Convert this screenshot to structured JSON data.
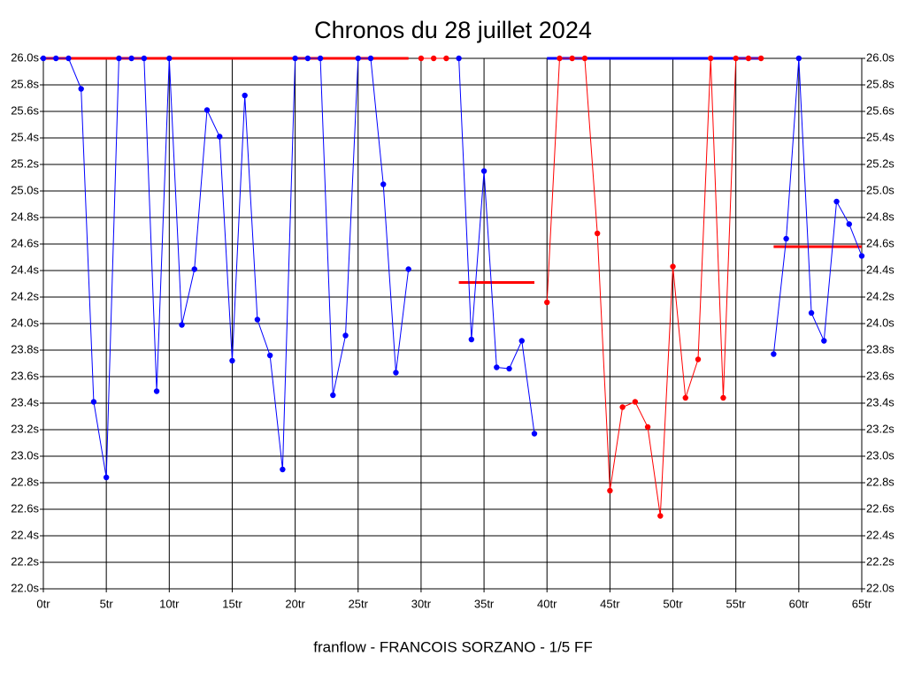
{
  "chart_data": {
    "type": "line",
    "title": "Chronos du 28 juillet 2024",
    "subtitle": "franflow - FRANCOIS SORZANO - 1/5 FF",
    "x": [
      0,
      1,
      2,
      3,
      4,
      5,
      6,
      7,
      8,
      9,
      10,
      11,
      12,
      13,
      14,
      15,
      16,
      17,
      18,
      19,
      20,
      21,
      22,
      23,
      24,
      25,
      26,
      27,
      28,
      29,
      30,
      31,
      32,
      33,
      34,
      35,
      36,
      37,
      38,
      39,
      40,
      41,
      42,
      43,
      44,
      45,
      46,
      47,
      48,
      49,
      50,
      51,
      52,
      53,
      54,
      55,
      56,
      57,
      58,
      59,
      60,
      61,
      62,
      63,
      64,
      65
    ],
    "series": [
      {
        "color": "#0000ff",
        "values": [
          26,
          26,
          26,
          25.77,
          23.41,
          22.84,
          26,
          26,
          26,
          23.49,
          26,
          23.99,
          24.41,
          25.61,
          25.41,
          23.72,
          25.72,
          24.03,
          23.76,
          22.9,
          26,
          26,
          26,
          23.46,
          23.91,
          26,
          26,
          25.05,
          23.63,
          24.41,
          null,
          null,
          null,
          26,
          23.88,
          25.15,
          23.67,
          23.66,
          23.87,
          23.17,
          null,
          null,
          null,
          null,
          null,
          null,
          null,
          null,
          null,
          null,
          null,
          null,
          null,
          null,
          null,
          null,
          null,
          null,
          23.77,
          24.64,
          26,
          24.08,
          23.87,
          24.92,
          24.75,
          24.51
        ]
      },
      {
        "color": "#ff0000",
        "values": [
          null,
          null,
          null,
          null,
          null,
          null,
          null,
          null,
          null,
          null,
          null,
          null,
          null,
          null,
          null,
          null,
          null,
          null,
          null,
          null,
          null,
          null,
          null,
          null,
          null,
          null,
          null,
          null,
          null,
          null,
          26,
          26,
          26,
          null,
          null,
          null,
          null,
          null,
          null,
          null,
          24.16,
          26,
          26,
          26,
          24.68,
          22.74,
          23.37,
          23.41,
          23.22,
          22.55,
          24.43,
          23.44,
          23.73,
          26,
          23.44,
          26,
          26,
          26,
          null,
          null,
          null,
          null,
          null,
          null,
          null,
          null
        ]
      }
    ],
    "ref_lines": [
      {
        "x": [
          0,
          29
        ],
        "value": 26,
        "color": "#ff0000"
      },
      {
        "x": [
          33,
          39
        ],
        "value": 24.31,
        "color": "#ff0000"
      },
      {
        "x": [
          40,
          57
        ],
        "value": 26,
        "color": "#0000ff"
      },
      {
        "x": [
          58,
          65
        ],
        "value": 24.58,
        "color": "#ff0000"
      }
    ],
    "xlim": [
      0,
      65
    ],
    "ylim": [
      22,
      26
    ],
    "xticks": [
      {
        "value": 0,
        "label": "0tr"
      },
      {
        "value": 5,
        "label": "5tr"
      },
      {
        "value": 10,
        "label": "10tr"
      },
      {
        "value": 15,
        "label": "15tr"
      },
      {
        "value": 20,
        "label": "20tr"
      },
      {
        "value": 25,
        "label": "25tr"
      },
      {
        "value": 30,
        "label": "30tr"
      },
      {
        "value": 35,
        "label": "35tr"
      },
      {
        "value": 40,
        "label": "40tr"
      },
      {
        "value": 45,
        "label": "45tr"
      },
      {
        "value": 50,
        "label": "50tr"
      },
      {
        "value": 55,
        "label": "55tr"
      },
      {
        "value": 60,
        "label": "60tr"
      },
      {
        "value": 65,
        "label": "65tr"
      }
    ],
    "yticks": [
      {
        "value": 22,
        "label": "22.0s"
      },
      {
        "value": 22.2,
        "label": "22.2s"
      },
      {
        "value": 22.4,
        "label": "22.4s"
      },
      {
        "value": 22.6,
        "label": "22.6s"
      },
      {
        "value": 22.8,
        "label": "22.8s"
      },
      {
        "value": 23,
        "label": "23.0s"
      },
      {
        "value": 23.2,
        "label": "23.2s"
      },
      {
        "value": 23.4,
        "label": "23.4s"
      },
      {
        "value": 23.6,
        "label": "23.6s"
      },
      {
        "value": 23.8,
        "label": "23.8s"
      },
      {
        "value": 24,
        "label": "24.0s"
      },
      {
        "value": 24.2,
        "label": "24.2s"
      },
      {
        "value": 24.4,
        "label": "24.4s"
      },
      {
        "value": 24.6,
        "label": "24.6s"
      },
      {
        "value": 24.8,
        "label": "24.8s"
      },
      {
        "value": 25,
        "label": "25.0s"
      },
      {
        "value": 25.2,
        "label": "25.2s"
      },
      {
        "value": 25.4,
        "label": "25.4s"
      },
      {
        "value": 25.6,
        "label": "25.6s"
      },
      {
        "value": 25.8,
        "label": "25.8s"
      },
      {
        "value": 26,
        "label": "26.0s"
      }
    ],
    "grid": true
  }
}
